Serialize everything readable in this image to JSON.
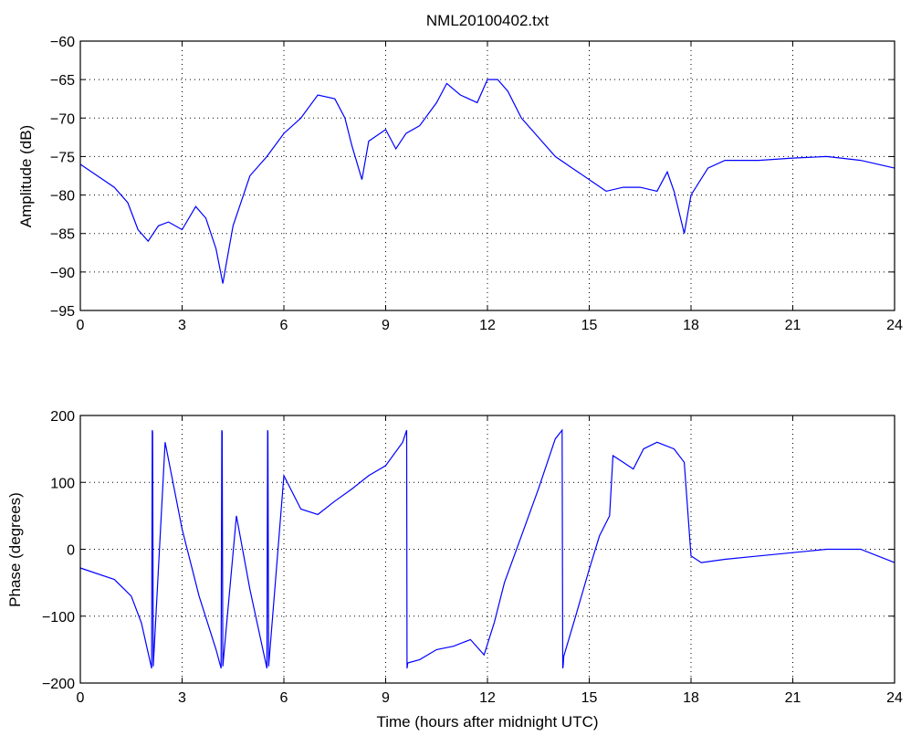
{
  "figure": {
    "title": "NML20100402.txt"
  },
  "style": {
    "line_color": "#0000ff",
    "axis_color": "#000000",
    "grid_color": "#000000",
    "background": "#ffffff"
  },
  "chart_data": [
    {
      "type": "line",
      "title": "NML20100402.txt",
      "xlabel": "",
      "ylabel": "Amplitude (dB)",
      "xlim": [
        0,
        24
      ],
      "ylim": [
        -95,
        -60
      ],
      "xticks": [
        0,
        3,
        6,
        9,
        12,
        15,
        18,
        21,
        24
      ],
      "yticks": [
        -95,
        -90,
        -85,
        -80,
        -75,
        -70,
        -65,
        -60
      ],
      "grid": true,
      "series": [
        {
          "x": [
            0,
            0.5,
            1.0,
            1.4,
            1.7,
            2.0,
            2.3,
            2.6,
            3.0,
            3.4,
            3.7,
            4.0,
            4.2,
            4.3,
            4.5,
            5.0,
            5.5,
            6.0,
            6.5,
            7.0,
            7.5,
            7.8,
            8.0,
            8.3,
            8.5,
            9.0,
            9.3,
            9.6,
            10.0,
            10.5,
            10.8,
            11.2,
            11.7,
            12.0,
            12.3,
            12.6,
            13.0,
            13.5,
            14.0,
            14.5,
            15.0,
            15.5,
            16.0,
            16.5,
            17.0,
            17.3,
            17.5,
            17.8,
            18.0,
            18.5,
            19.0,
            20.0,
            21.0,
            22.0,
            23.0,
            24.0
          ],
          "y": [
            -76,
            -77.5,
            -79,
            -81,
            -84.5,
            -86,
            -84,
            -83.5,
            -84.5,
            -81.5,
            -83,
            -87,
            -91.5,
            -89,
            -84,
            -77.5,
            -75,
            -72,
            -70,
            -67,
            -67.5,
            -70,
            -73.5,
            -78,
            -73,
            -71.5,
            -74,
            -72,
            -71,
            -68,
            -65.5,
            -67,
            -68,
            -65,
            -65,
            -66.5,
            -70,
            -72.5,
            -75,
            -76.5,
            -78,
            -79.5,
            -79,
            -79,
            -79.5,
            -77,
            -79.5,
            -85,
            -80,
            -76.5,
            -75.5,
            -75.5,
            -75.2,
            -75,
            -75.5,
            -76.5
          ]
        }
      ]
    },
    {
      "type": "line",
      "title": "",
      "xlabel": "Time (hours after midnight UTC)",
      "ylabel": "Phase (degrees)",
      "xlim": [
        0,
        24
      ],
      "ylim": [
        -200,
        200
      ],
      "xticks": [
        0,
        3,
        6,
        9,
        12,
        15,
        18,
        21,
        24
      ],
      "yticks": [
        -200,
        -100,
        0,
        100,
        200
      ],
      "grid": true,
      "series": [
        {
          "x": [
            0,
            1.0,
            1.5,
            1.8,
            2.1,
            2.12,
            2.13,
            2.15,
            2.5,
            3.0,
            3.5,
            4.0,
            4.15,
            4.17,
            4.18,
            4.2,
            4.6,
            5.0,
            5.5,
            5.52,
            5.53,
            5.55,
            6.0,
            6.5,
            7.0,
            7.5,
            8.0,
            8.5,
            9.0,
            9.5,
            9.62,
            9.63,
            9.65,
            10.0,
            10.5,
            11.0,
            11.5,
            11.9,
            12.2,
            12.5,
            13.0,
            13.5,
            14.0,
            14.2,
            14.22,
            14.23,
            14.25,
            14.6,
            15.0,
            15.3,
            15.6,
            15.7,
            16.0,
            16.3,
            16.6,
            17.0,
            17.5,
            17.8,
            18.0,
            18.3,
            19.0,
            20.0,
            21.0,
            22.0,
            23.0,
            24.0
          ],
          "y": [
            -28,
            -45,
            -70,
            -110,
            -178,
            178,
            175,
            -175,
            160,
            30,
            -70,
            -150,
            -178,
            178,
            175,
            -175,
            50,
            -60,
            -178,
            178,
            175,
            -175,
            110,
            60,
            52,
            72,
            90,
            110,
            125,
            160,
            178,
            -178,
            -170,
            -165,
            -150,
            -145,
            -135,
            -158,
            -110,
            -50,
            20,
            90,
            165,
            178,
            -178,
            -175,
            -160,
            -100,
            -30,
            20,
            50,
            140,
            130,
            120,
            150,
            160,
            150,
            130,
            -10,
            -20,
            -15,
            -10,
            -5,
            0,
            0,
            -20
          ]
        }
      ]
    }
  ]
}
